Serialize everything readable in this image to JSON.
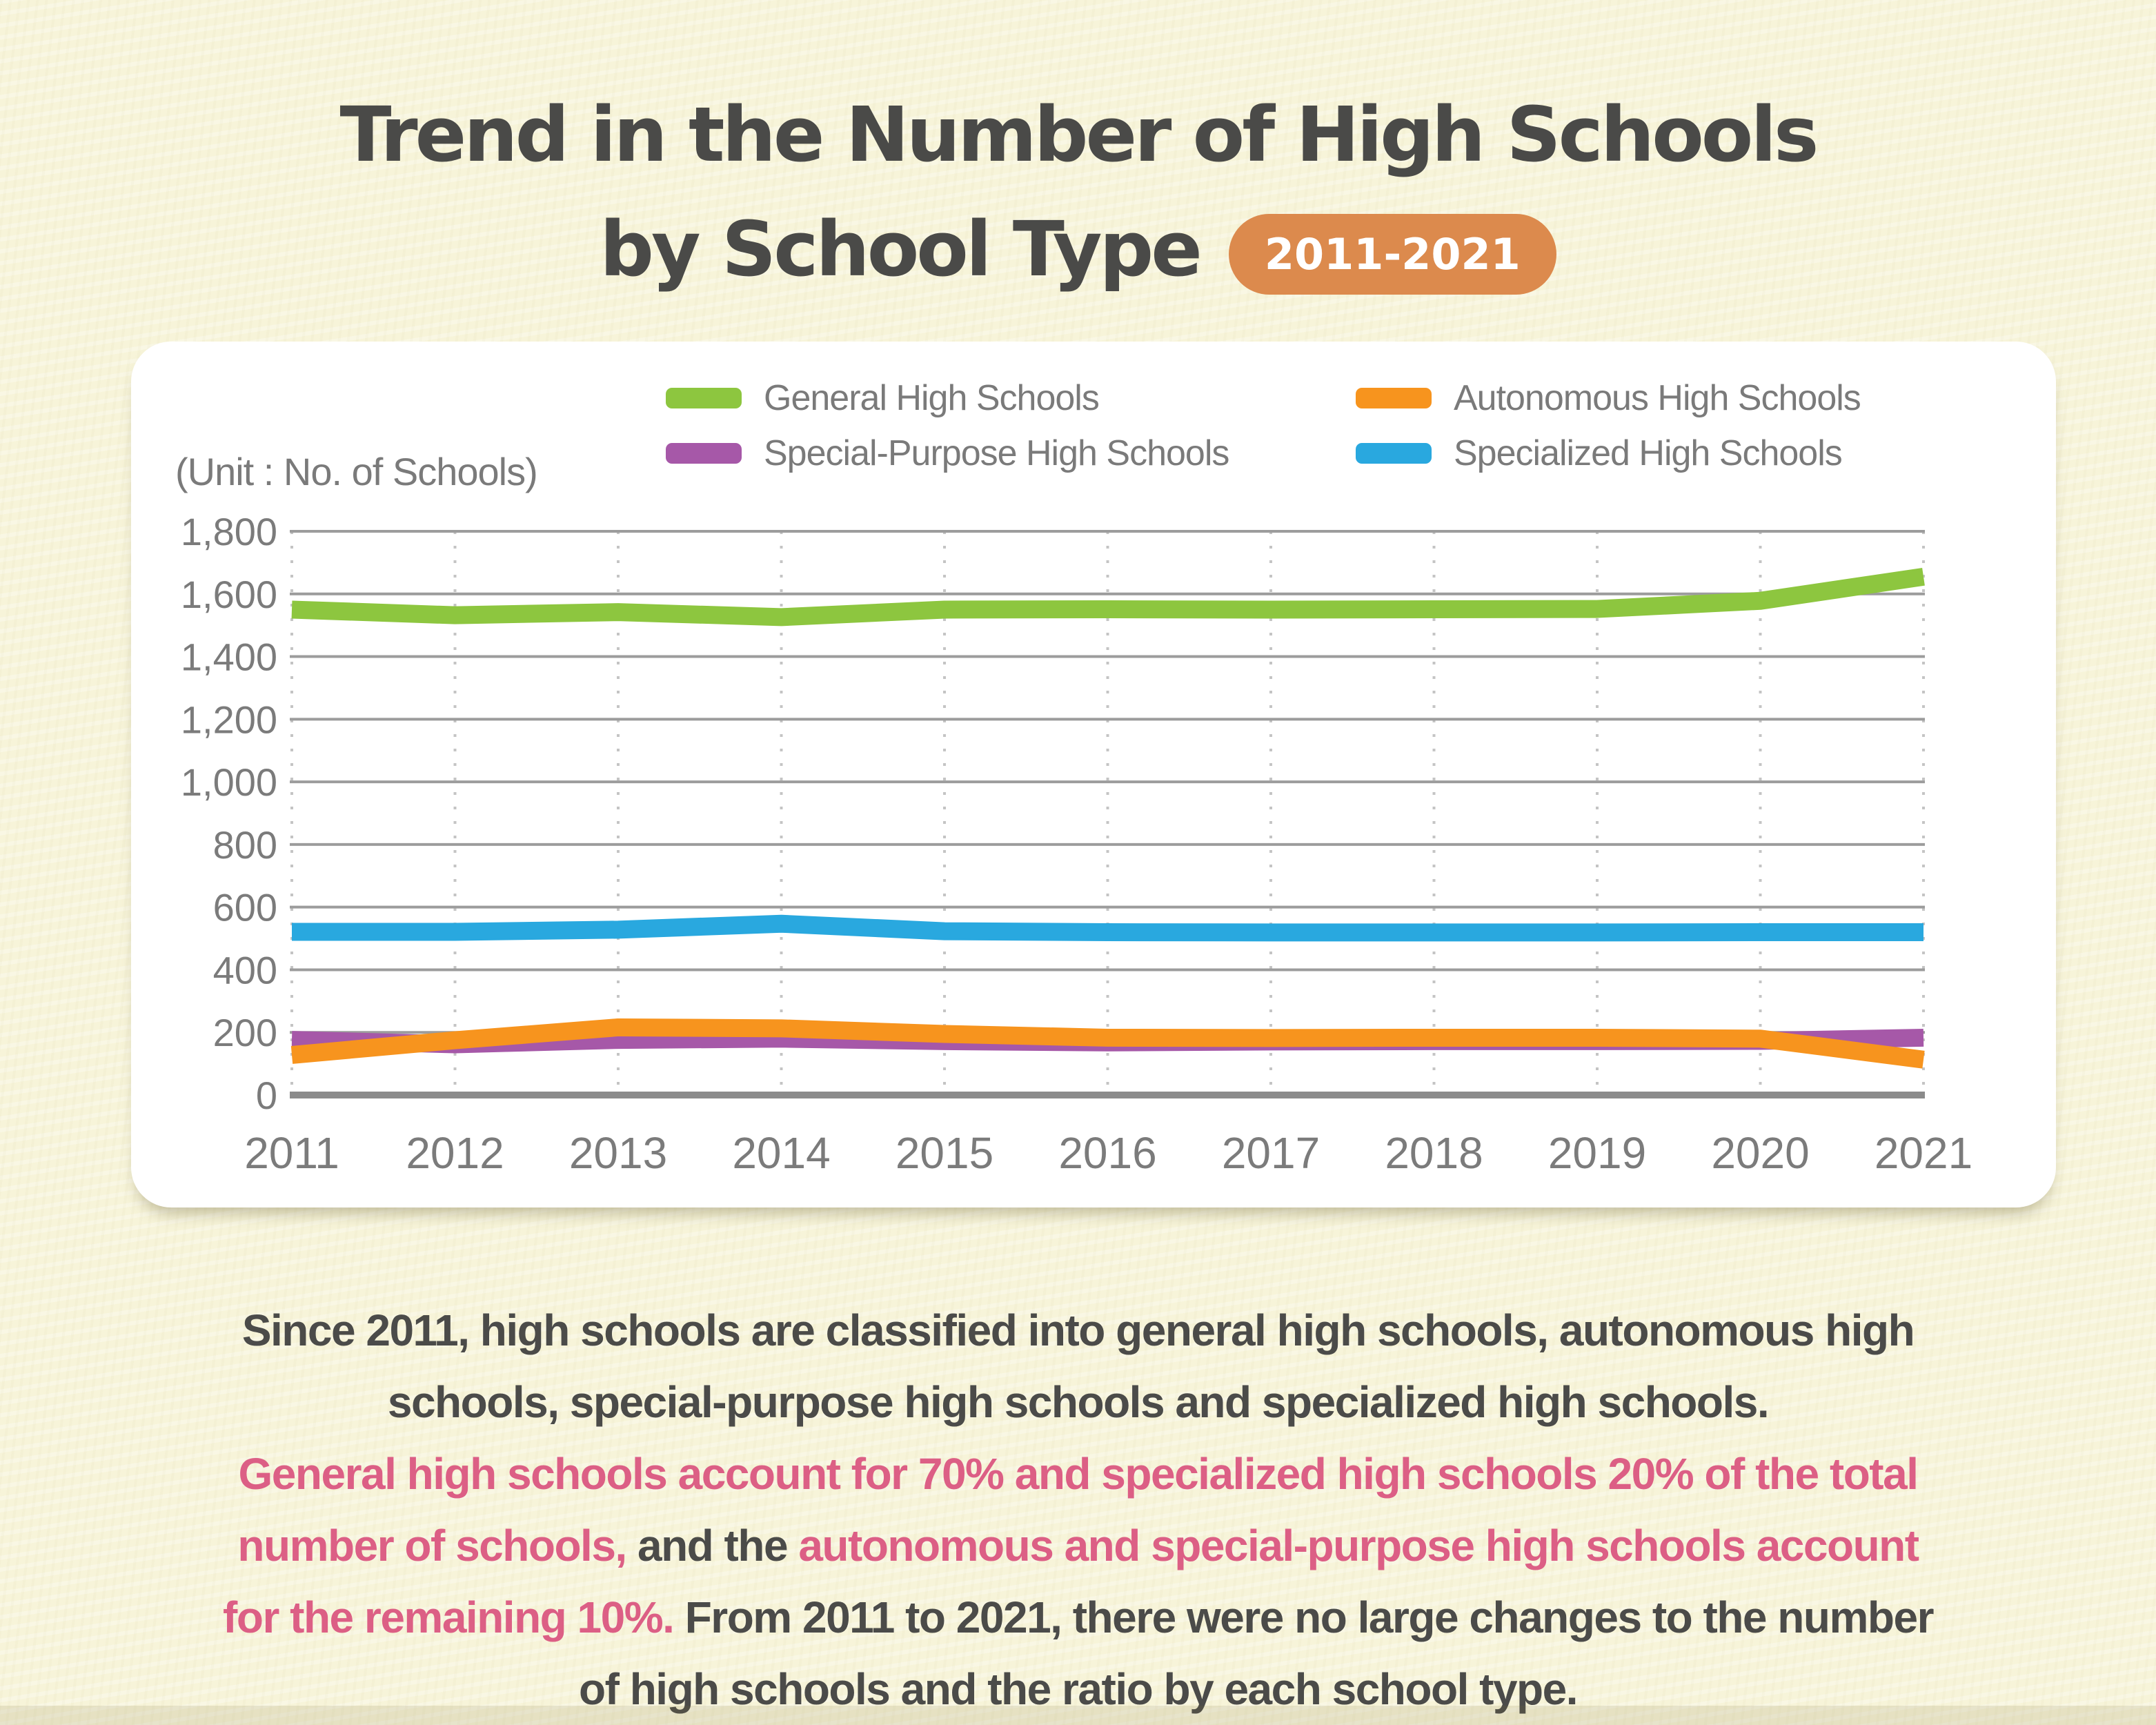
{
  "page": {
    "title_line1": "Trend in the Number of High Schools",
    "title_line2": "by School Type",
    "badge": "2011-2021",
    "badge_color": "#dc8a4d",
    "background_color": "#f7f4d9"
  },
  "chart_card": {
    "unit_label": "(Unit : No. of Schools)"
  },
  "chart_data": {
    "type": "line",
    "title": "Trend in the Number of High Schools by School Type",
    "subtitle": "2011-2021",
    "x": [
      2011,
      2012,
      2013,
      2014,
      2015,
      2016,
      2017,
      2018,
      2019,
      2020,
      2021
    ],
    "series": [
      {
        "name": "General High Schools",
        "color": "#8dc63f",
        "values": [
          1550,
          1532,
          1542,
          1526,
          1550,
          1551,
          1550,
          1551,
          1552,
          1578,
          1655
        ]
      },
      {
        "name": "Autonomous High Schools",
        "color": "#f7941e",
        "values": [
          128,
          175,
          216,
          213,
          195,
          183,
          182,
          183,
          183,
          180,
          113
        ]
      },
      {
        "name": "Special-Purpose High Schools",
        "color": "#a658a8",
        "values": [
          176,
          162,
          176,
          180,
          172,
          168,
          171,
          172,
          172,
          173,
          183
        ]
      },
      {
        "name": "Specialized High Schools",
        "color": "#29a8df",
        "values": [
          521,
          521,
          528,
          547,
          523,
          520,
          519,
          519,
          519,
          520,
          520
        ]
      }
    ],
    "ylim": [
      0,
      1800
    ],
    "ytick_step": 200,
    "ytick_labels": [
      "0",
      "200",
      "400",
      "600",
      "800",
      "1,000",
      "1,200",
      "1,400",
      "1,600",
      "1,800"
    ],
    "xlabel": "",
    "ylabel": "(Unit : No. of Schools)",
    "legend_position": "top",
    "grid": {
      "horizontal": "solid",
      "vertical": "dotted"
    },
    "draw_order": [
      0,
      3,
      2,
      1
    ]
  },
  "description": {
    "colors": {
      "dark": "#4b4b49",
      "pink": "#dc5f85"
    },
    "lines": [
      [
        {
          "style": "dark",
          "text": "Since 2011, high schools are classified into general high schools, autonomous high"
        }
      ],
      [
        {
          "style": "dark",
          "text": "schools, special-purpose high schools and specialized high schools."
        }
      ],
      [
        {
          "style": "pink",
          "text": "General high schools account for 70% and specialized high schools 20% of the total"
        }
      ],
      [
        {
          "style": "pink",
          "text": "number of schools,"
        },
        {
          "style": "dark",
          "text": " and the "
        },
        {
          "style": "pink",
          "text": "autonomous and special-purpose high schools account"
        }
      ],
      [
        {
          "style": "pink",
          "text": "for the remaining 10%."
        },
        {
          "style": "dark",
          "text": " From 2011 to 2021, there were no large changes to the number"
        }
      ],
      [
        {
          "style": "dark",
          "text": "of high schools and the ratio by each school type."
        }
      ]
    ]
  }
}
